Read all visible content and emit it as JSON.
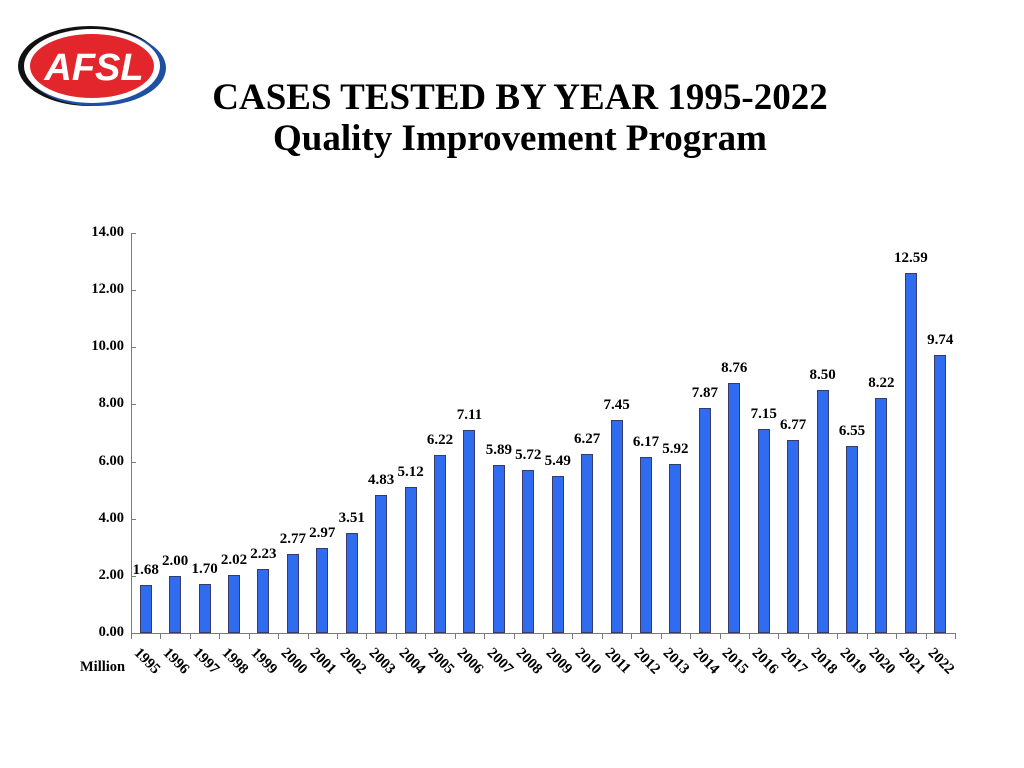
{
  "logo": {
    "text": "AFSL",
    "colors": {
      "red": "#E3262B",
      "blue": "#1F4FA0",
      "black": "#111111"
    }
  },
  "header": {
    "title": "CASES TESTED BY YEAR 1995-2022",
    "subtitle": "Quality Improvement Program"
  },
  "chart_data": {
    "type": "bar",
    "title": "CASES TESTED BY YEAR 1995-2022",
    "subtitle": "Quality Improvement Program",
    "xlabel": "",
    "ylabel": "Million",
    "unit_label": "Million",
    "ylim": [
      0,
      14
    ],
    "yticks": [
      "0.00",
      "2.00",
      "4.00",
      "6.00",
      "8.00",
      "10.00",
      "12.00",
      "14.00"
    ],
    "grid": false,
    "legend": null,
    "bar_color": "#2F6CF0",
    "categories": [
      "1995",
      "1996",
      "1997",
      "1998",
      "1999",
      "2000",
      "2001",
      "2002",
      "2003",
      "2004",
      "2005",
      "2006",
      "2007",
      "2008",
      "2009",
      "2010",
      "2011",
      "2012",
      "2013",
      "2014",
      "2015",
      "2016",
      "2017",
      "2018",
      "2019",
      "2020",
      "2021",
      "2022"
    ],
    "values": [
      1.68,
      2.0,
      1.7,
      2.02,
      2.23,
      2.77,
      2.97,
      3.51,
      4.83,
      5.12,
      6.22,
      7.11,
      5.89,
      5.72,
      5.49,
      6.27,
      7.45,
      6.17,
      5.92,
      7.87,
      8.76,
      7.15,
      6.77,
      8.5,
      6.55,
      8.22,
      12.59,
      9.74
    ],
    "value_labels": [
      "1.68",
      "2.00",
      "1.70",
      "2.02",
      "2.23",
      "2.77",
      "2.97",
      "3.51",
      "4.83",
      "5.12",
      "6.22",
      "7.11",
      "5.89",
      "5.72",
      "5.49",
      "6.27",
      "7.45",
      "6.17",
      "5.92",
      "7.87",
      "8.76",
      "7.15",
      "6.77",
      "8.50",
      "6.55",
      "8.22",
      "12.59",
      "9.74"
    ]
  }
}
